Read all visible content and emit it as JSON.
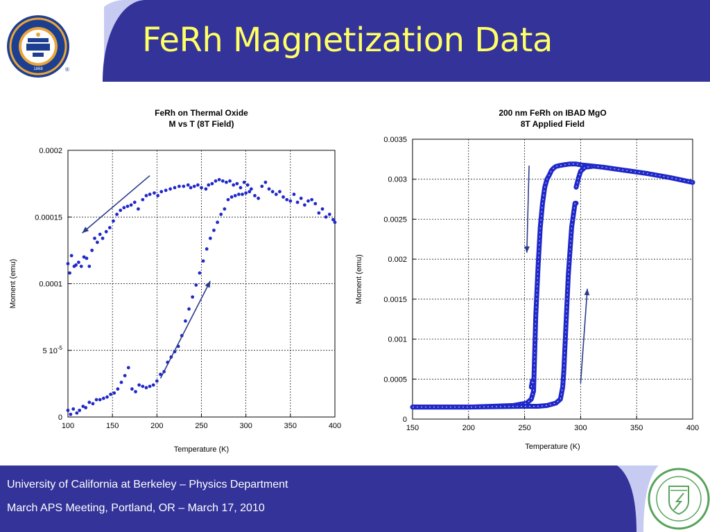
{
  "slide": {
    "title": "FeRh Magnetization Data",
    "footer": {
      "line1": "University of California at Berkeley – Physics Department",
      "line2": "March APS Meeting, Portland, OR – March 17, 2010"
    },
    "logos": {
      "left": {
        "icon": "uc-berkeley-seal-icon",
        "text": "THE UNIVERSITY OF CALIFORNIA BERKELEY 1868"
      },
      "right": {
        "icon": "department-of-energy-seal-icon",
        "text": "DEPARTMENT OF ENERGY UNITED STATES OF AMERICA"
      }
    },
    "colors": {
      "header_bg": "#333399",
      "accent_light": "#c7cbf2",
      "title": "#ffff66",
      "data": "#1f28c8",
      "arrow": "#2a3a8c"
    }
  },
  "chart_data": [
    {
      "type": "scatter",
      "title": [
        "FeRh on Thermal Oxide",
        "M vs T (8T Field)"
      ],
      "xlabel": "Temperature (K)",
      "ylabel": "Moment (emu)",
      "xlim": [
        100,
        400
      ],
      "ylim": [
        0,
        0.0002
      ],
      "xticks": [
        {
          "v": 100,
          "label": "100"
        },
        {
          "v": 150,
          "label": "150"
        },
        {
          "v": 200,
          "label": "200"
        },
        {
          "v": 250,
          "label": "250"
        },
        {
          "v": 300,
          "label": "300"
        },
        {
          "v": 350,
          "label": "350"
        },
        {
          "v": 400,
          "label": "400"
        }
      ],
      "yticks": [
        {
          "v": 0,
          "label": "0"
        },
        {
          "v": 5e-05,
          "label": "5 10",
          "sup": "-5"
        },
        {
          "v": 0.0001,
          "label": "0.0001"
        },
        {
          "v": 0.00015,
          "label": "0.00015"
        },
        {
          "v": 0.0002,
          "label": "0.0002"
        }
      ],
      "grid": true,
      "marker": "filled",
      "series": [
        {
          "x": [
            100,
            102,
            104,
            107,
            109,
            112,
            115,
            118,
            121,
            124,
            127,
            130,
            133,
            136,
            139,
            143,
            147,
            151,
            155,
            159,
            163,
            167,
            171,
            175,
            179,
            184,
            188,
            192,
            197,
            201,
            205,
            210,
            215,
            220,
            225,
            230,
            235,
            238,
            242,
            246,
            250,
            255,
            258,
            262,
            266,
            270,
            274,
            278,
            282,
            286,
            290,
            294,
            298,
            302,
            306,
            310,
            314,
            318,
            322,
            326,
            330,
            334,
            338,
            342,
            346,
            350,
            354,
            358,
            362,
            366,
            370,
            374,
            378,
            382,
            386,
            390,
            394,
            398,
            400
          ],
          "y": [
            0.000115,
            0.000108,
            0.000121,
            0.000113,
            0.000114,
            0.000116,
            0.000113,
            0.00012,
            0.000119,
            0.000113,
            0.000125,
            0.000134,
            0.000131,
            0.000137,
            0.000134,
            0.000139,
            0.000142,
            0.000147,
            0.000152,
            0.000155,
            0.000157,
            0.000158,
            0.000159,
            0.000161,
            0.000156,
            0.000163,
            0.000166,
            0.000167,
            0.000168,
            0.000166,
            0.000169,
            0.00017,
            0.000171,
            0.000172,
            0.000173,
            0.000173,
            0.000174,
            0.000172,
            0.000173,
            0.000174,
            0.000172,
            0.000171,
            0.000174,
            0.000175,
            0.000177,
            0.000178,
            0.000177,
            0.000176,
            0.000177,
            0.000174,
            0.000175,
            0.000172,
            0.000176,
            0.000174,
            0.000171,
            0.000166,
            0.000164,
            0.000173,
            0.000176,
            0.000171,
            0.000169,
            0.000167,
            0.000169,
            0.000165,
            0.000163,
            0.000162,
            0.000167,
            0.000161,
            0.000164,
            0.000159,
            0.000162,
            0.000163,
            0.00016,
            0.000153,
            0.000156,
            0.00015,
            0.000152,
            0.000148,
            0.000146
          ]
        },
        {
          "x": [
            100,
            103,
            106,
            110,
            113,
            117,
            120,
            124,
            128,
            132,
            136,
            140,
            144,
            148,
            152,
            156,
            160,
            164,
            168,
            172,
            176,
            180,
            184,
            188,
            192,
            196,
            200,
            204,
            208,
            212,
            216,
            220,
            224,
            228,
            232,
            236,
            240,
            244,
            248,
            252,
            256,
            260,
            264,
            268,
            272,
            276,
            280,
            284,
            288,
            292,
            296,
            300,
            304
          ],
          "y": [
            5e-06,
            2e-06,
            6e-06,
            3e-06,
            5e-06,
            8e-06,
            7e-06,
            1.1e-05,
            1e-05,
            1.3e-05,
            1.3e-05,
            1.4e-05,
            1.5e-05,
            1.7e-05,
            1.8e-05,
            2.1e-05,
            2.6e-05,
            3.1e-05,
            3.7e-05,
            2.1e-05,
            1.9e-05,
            2.4e-05,
            2.3e-05,
            2.2e-05,
            2.3e-05,
            2.4e-05,
            2.7e-05,
            3.2e-05,
            3.4e-05,
            4.1e-05,
            4.5e-05,
            4.9e-05,
            5.3e-05,
            6.1e-05,
            7.2e-05,
            8.1e-05,
            9e-05,
            9.9e-05,
            0.000108,
            0.000117,
            0.000126,
            0.000134,
            0.00014,
            0.000146,
            0.000152,
            0.000156,
            0.000163,
            0.000165,
            0.000166,
            0.000167,
            0.000167,
            0.000168,
            0.000169
          ]
        }
      ],
      "annotations": [
        {
          "type": "arrow",
          "from": [
            192,
            0.000181
          ],
          "to": [
            116,
            0.000138
          ]
        },
        {
          "type": "arrow",
          "from": [
            204,
            2.9e-05
          ],
          "to": [
            260,
            0.000102
          ]
        }
      ]
    },
    {
      "type": "scatter",
      "title": [
        "200 nm FeRh on IBAD MgO",
        "8T Applied Field"
      ],
      "xlabel": "Temperature (K)",
      "ylabel": "Moment (emu)",
      "xlim": [
        150,
        400
      ],
      "ylim": [
        0,
        0.0035
      ],
      "xticks": [
        {
          "v": 150,
          "label": "150"
        },
        {
          "v": 200,
          "label": "200"
        },
        {
          "v": 250,
          "label": "250"
        },
        {
          "v": 300,
          "label": "300"
        },
        {
          "v": 350,
          "label": "350"
        },
        {
          "v": 400,
          "label": "400"
        }
      ],
      "yticks": [
        {
          "v": 0,
          "label": "0"
        },
        {
          "v": 0.0005,
          "label": "0.0005"
        },
        {
          "v": 0.001,
          "label": "0.001"
        },
        {
          "v": 0.0015,
          "label": "0.0015"
        },
        {
          "v": 0.002,
          "label": "0.002"
        },
        {
          "v": 0.0025,
          "label": "0.0025"
        },
        {
          "v": 0.003,
          "label": "0.003"
        },
        {
          "v": 0.0035,
          "label": "0.0035"
        }
      ],
      "grid": true,
      "marker": "open",
      "series": [
        {
          "name": "",
          "polyline": true,
          "x": [
            150,
            200,
            240,
            252,
            256,
            258,
            260,
            262,
            264,
            266,
            268,
            270,
            272,
            274,
            276,
            278,
            281,
            285,
            290,
            296,
            300,
            320,
            340,
            360,
            380,
            400
          ],
          "y": [
            0.00015,
            0.00015,
            0.00017,
            0.0002,
            0.00025,
            0.00035,
            0.0013,
            0.0019,
            0.0024,
            0.0027,
            0.0029,
            0.003,
            0.00305,
            0.00311,
            0.00314,
            0.00316,
            0.00317,
            0.00318,
            0.00319,
            0.00319,
            0.00318,
            0.00315,
            0.00311,
            0.00307,
            0.00302,
            0.00296
          ]
        },
        {
          "name": "",
          "polyline": true,
          "x": [
            150,
            200,
            250,
            262,
            270,
            278,
            282,
            284,
            285,
            286,
            287,
            288,
            289,
            290,
            291,
            292,
            293,
            294,
            295,
            296
          ],
          "y": [
            0.00015,
            0.00015,
            0.00016,
            0.00016,
            0.00017,
            0.0002,
            0.00025,
            0.0004,
            0.0006,
            0.0009,
            0.0012,
            0.0015,
            0.0018,
            0.002,
            0.0022,
            0.0024,
            0.0025,
            0.0026,
            0.0027,
            0.0027
          ]
        },
        {
          "name": "",
          "polyline": true,
          "x": [
            296,
            298,
            300,
            304,
            310
          ],
          "y": [
            0.0029,
            0.00301,
            0.0031,
            0.00315,
            0.00316
          ]
        },
        {
          "name": "",
          "polyline": true,
          "x": [
            256,
            257,
            258
          ],
          "y": [
            0.0004,
            0.00048,
            0.00045
          ]
        }
      ],
      "annotations": [
        {
          "type": "arrow",
          "from": [
            254,
            0.00317
          ],
          "to": [
            252,
            0.00208
          ]
        },
        {
          "type": "arrow",
          "from": [
            300,
            0.00045
          ],
          "to": [
            306,
            0.00163
          ]
        }
      ]
    }
  ]
}
